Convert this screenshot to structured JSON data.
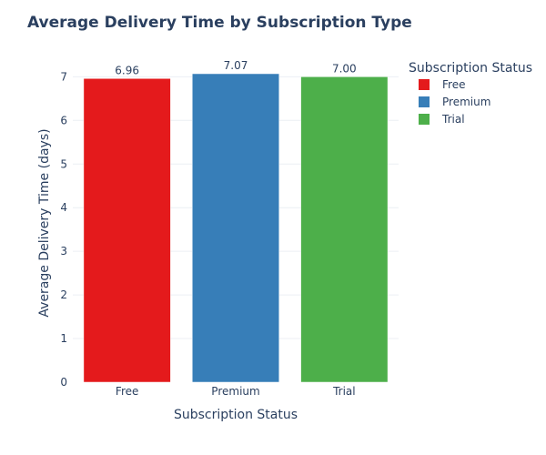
{
  "chart_data": {
    "type": "bar",
    "title": "Average Delivery Time by Subscription Type",
    "xlabel": "Subscription Status",
    "ylabel": "Average Delivery Time (days)",
    "categories": [
      "Free",
      "Premium",
      "Trial"
    ],
    "values": [
      6.96,
      7.07,
      7.0
    ],
    "data_labels": [
      "6.96",
      "7.07",
      "7.00"
    ],
    "colors": [
      "#e41a1c",
      "#377eb8",
      "#4daf4a"
    ],
    "ylim": [
      0,
      7.07
    ],
    "yticks": [
      0,
      1,
      2,
      3,
      4,
      5,
      6,
      7
    ],
    "grid": true,
    "legend": {
      "title": "Subscription Status",
      "placement": "top-right",
      "items": [
        "Free",
        "Premium",
        "Trial"
      ]
    }
  }
}
